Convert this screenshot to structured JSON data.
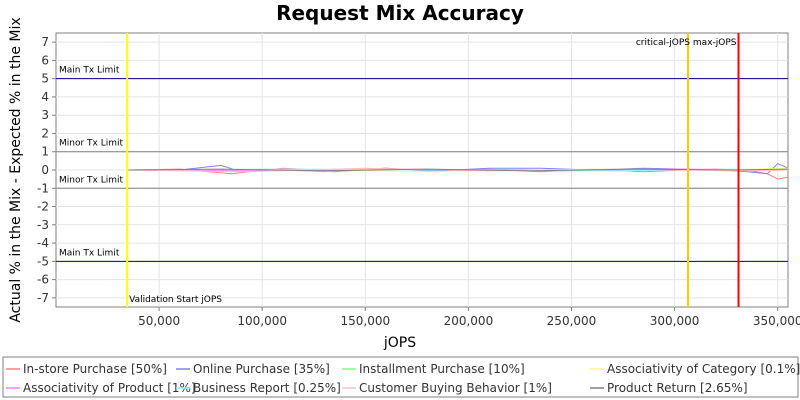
{
  "chart_data": {
    "type": "line",
    "title": "Request Mix Accuracy",
    "xlabel": "jOPS",
    "ylabel": "Actual % in the Mix - Expected % in the Mix",
    "xlim": [
      0,
      355000
    ],
    "ylim": [
      -7.5,
      7.5
    ],
    "xticks": [
      50000,
      100000,
      150000,
      200000,
      250000,
      300000,
      350000
    ],
    "xtick_labels": [
      "50,000",
      "100,000",
      "150,000",
      "200,000",
      "250,000",
      "300,000",
      "350,000"
    ],
    "yticks": [
      -7,
      -6,
      -5,
      -4,
      -3,
      -2,
      -1,
      0,
      1,
      2,
      3,
      4,
      5,
      6,
      7
    ],
    "legend_position": "bottom",
    "hlines": [
      {
        "y": 5,
        "label": "Main Tx Limit",
        "color": "#000080"
      },
      {
        "y": 1,
        "label": "Minor Tx Limit",
        "color": "#808080"
      },
      {
        "y": -1,
        "label": "Minor Tx Limit",
        "color": "#808080"
      },
      {
        "y": -5,
        "label": "Main Tx Limit",
        "color": "#000080"
      }
    ],
    "vlines": [
      {
        "x": 34500,
        "label": "Validation Start jOPS",
        "color": "#ffff00"
      },
      {
        "x": 306500,
        "label": "critical-jOPS",
        "color": "#ffcc00"
      },
      {
        "x": 331000,
        "label": "max-jOPS",
        "color": "#ff0000"
      }
    ],
    "series": [
      {
        "name": "In-store Purchase [50%]",
        "color": "#ff8080",
        "x": [
          35000,
          60000,
          85000,
          110000,
          135000,
          160000,
          185000,
          210000,
          235000,
          260000,
          285000,
          305000,
          320000,
          335000,
          345000,
          350000,
          355000
        ],
        "y": [
          0.0,
          0.05,
          -0.2,
          0.1,
          -0.05,
          0.1,
          -0.1,
          0.05,
          -0.1,
          0.05,
          -0.1,
          0.0,
          0.05,
          0.0,
          -0.2,
          -0.5,
          -0.4
        ]
      },
      {
        "name": "Online Purchase [35%]",
        "color": "#8080ff",
        "x": [
          35000,
          60000,
          80000,
          90000,
          110000,
          135000,
          160000,
          185000,
          210000,
          235000,
          260000,
          285000,
          305000,
          320000,
          335000,
          345000,
          350000,
          355000
        ],
        "y": [
          0.0,
          0.0,
          0.25,
          -0.1,
          0.05,
          -0.1,
          0.1,
          -0.05,
          0.1,
          0.1,
          0.0,
          0.1,
          0.05,
          0.0,
          -0.1,
          -0.2,
          0.35,
          0.1
        ]
      },
      {
        "name": "Installment Purchase [10%]",
        "color": "#80ff80",
        "x": [
          35000,
          70000,
          100000,
          130000,
          160000,
          190000,
          220000,
          250000,
          280000,
          310000,
          335000,
          350000,
          355000
        ],
        "y": [
          0.0,
          -0.05,
          0.05,
          -0.1,
          0.05,
          0.0,
          0.05,
          -0.05,
          0.05,
          0.0,
          0.0,
          0.1,
          0.0
        ]
      },
      {
        "name": "Associativity of Category [0.1%]",
        "color": "#ffff80",
        "x": [
          35000,
          100000,
          180000,
          260000,
          320000,
          355000
        ],
        "y": [
          0.0,
          0.05,
          -0.1,
          0.05,
          0.0,
          0.1
        ]
      },
      {
        "name": "Associativity of Product [1%]",
        "color": "#ff80ff",
        "x": [
          35000,
          100000,
          170000,
          240000,
          300000,
          355000
        ],
        "y": [
          0.0,
          -0.05,
          0.05,
          -0.05,
          0.05,
          0.0
        ]
      },
      {
        "name": "Business Report [0.25%]",
        "color": "#80ffff",
        "x": [
          35000,
          110000,
          190000,
          270000,
          330000,
          355000
        ],
        "y": [
          0.0,
          0.05,
          0.0,
          -0.05,
          0.05,
          0.0
        ]
      },
      {
        "name": "Customer Buying Behavior [1%]",
        "color": "#ffc0c0",
        "x": [
          35000,
          90000,
          150000,
          210000,
          270000,
          330000,
          355000
        ],
        "y": [
          0.0,
          -0.1,
          0.1,
          -0.05,
          0.05,
          -0.05,
          0.0
        ]
      },
      {
        "name": "Product Return [2.65%]",
        "color": "#808080",
        "x": [
          35000,
          80000,
          130000,
          180000,
          230000,
          280000,
          330000,
          355000
        ],
        "y": [
          0.0,
          0.05,
          -0.05,
          0.05,
          -0.05,
          0.05,
          0.0,
          0.05
        ]
      }
    ]
  }
}
